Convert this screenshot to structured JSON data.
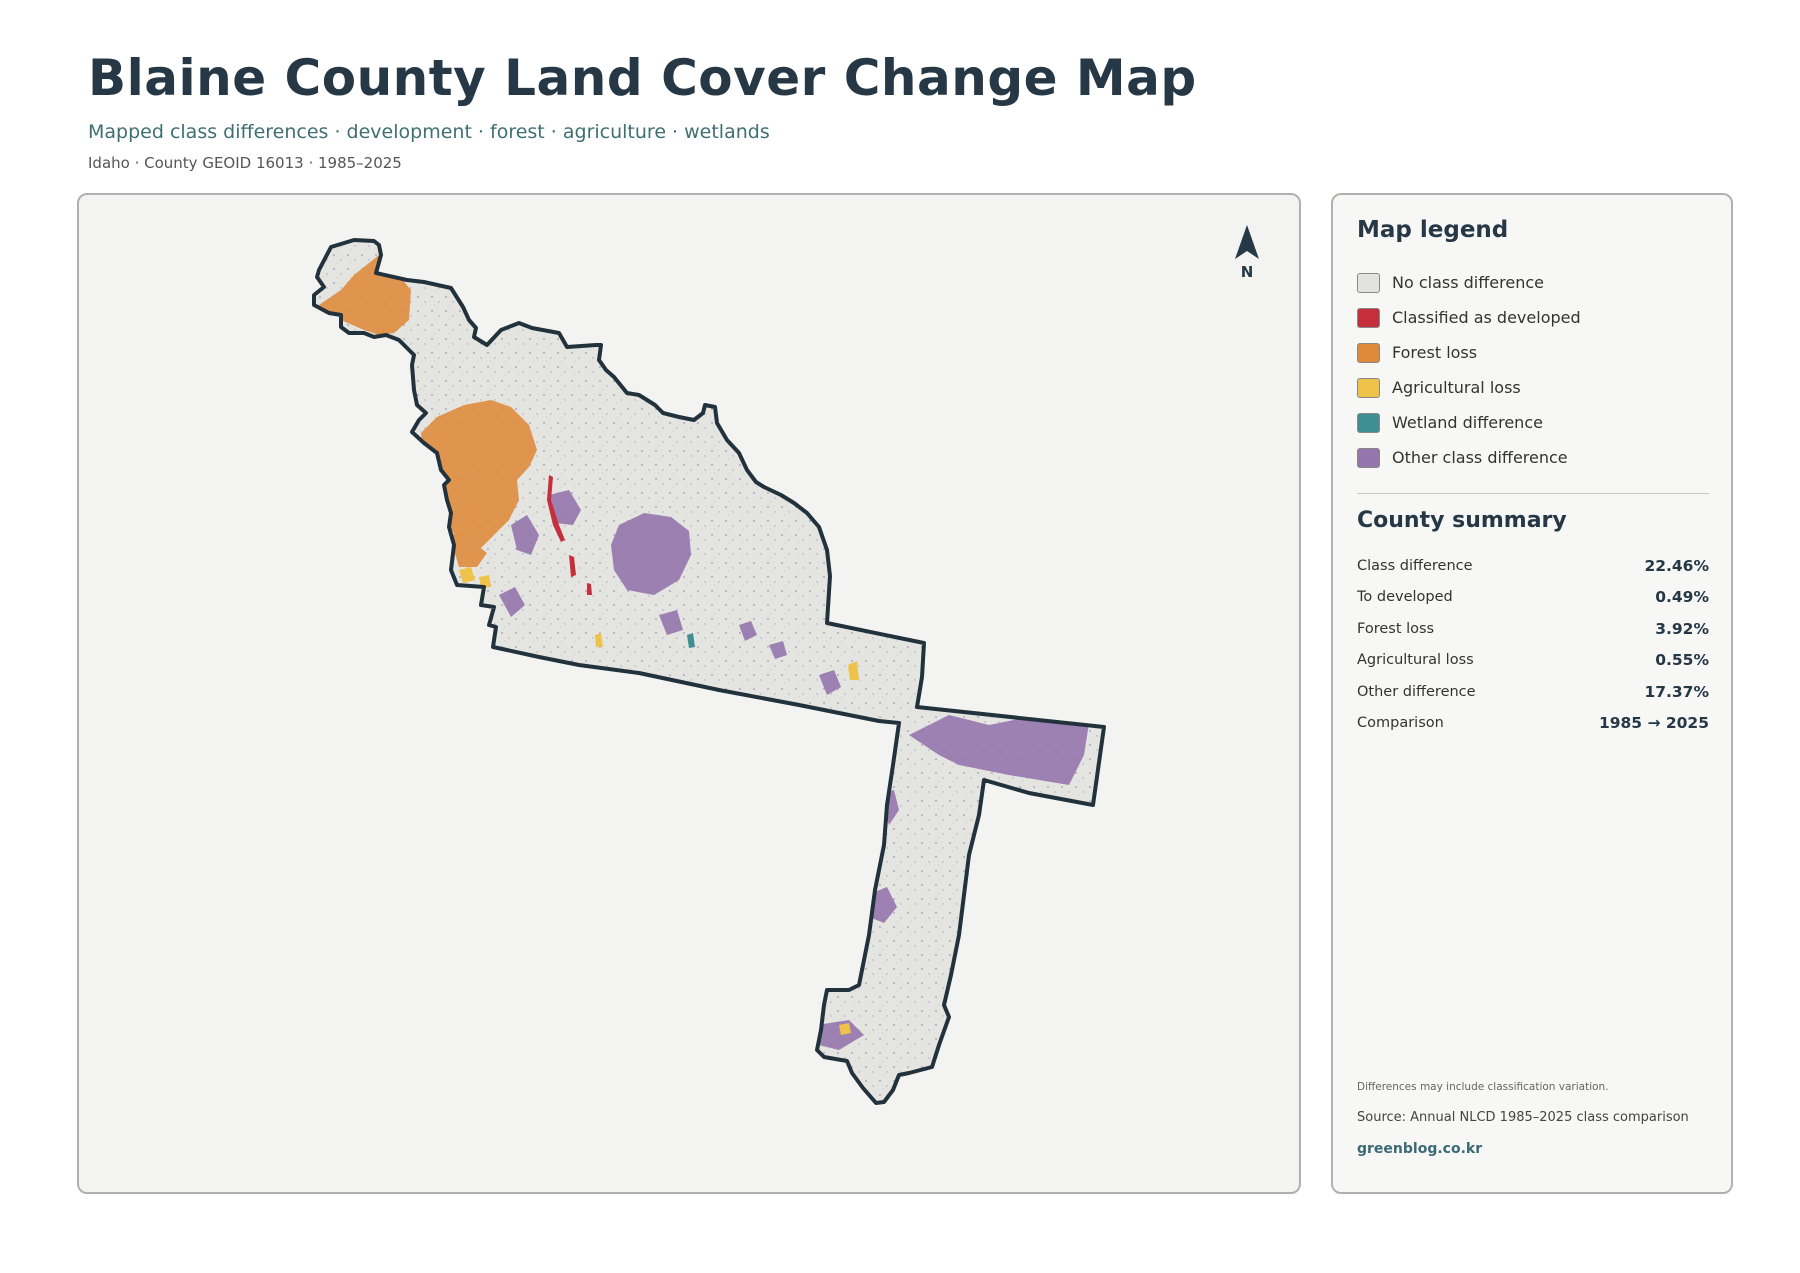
{
  "header": {
    "title": "Blaine County Land Cover Change Map",
    "subtitle": "Mapped class differences · development · forest · agriculture · wetlands",
    "meta": "Idaho · County GEOID 16013 · 1985–2025"
  },
  "map": {
    "north_label": "N",
    "colors": {
      "background": "#f3f3f1",
      "county_fill": "#e4e4e0",
      "county_outline": "#22323d"
    }
  },
  "legend": {
    "title": "Map legend",
    "items": [
      {
        "label": "No class difference",
        "color": "#e2e2df"
      },
      {
        "label": "Classified as developed",
        "color": "#c42f3b"
      },
      {
        "label": "Forest loss",
        "color": "#df8a3a"
      },
      {
        "label": "Agricultural loss",
        "color": "#efc34a"
      },
      {
        "label": "Wetland difference",
        "color": "#3f8e93"
      },
      {
        "label": "Other class difference",
        "color": "#9476ad"
      }
    ]
  },
  "summary": {
    "title": "County summary",
    "rows": [
      {
        "label": "Class difference",
        "value": "22.46%"
      },
      {
        "label": "To developed",
        "value": "0.49%"
      },
      {
        "label": "Forest loss",
        "value": "3.92%"
      },
      {
        "label": "Agricultural loss",
        "value": "0.55%"
      },
      {
        "label": "Other difference",
        "value": "17.37%"
      },
      {
        "label": "Comparison",
        "value": "1985 → 2025"
      }
    ]
  },
  "footer": {
    "note": "Differences may include classification variation.",
    "source": "Source: Annual NLCD 1985–2025 class comparison",
    "link": "greenblog.co.kr"
  }
}
